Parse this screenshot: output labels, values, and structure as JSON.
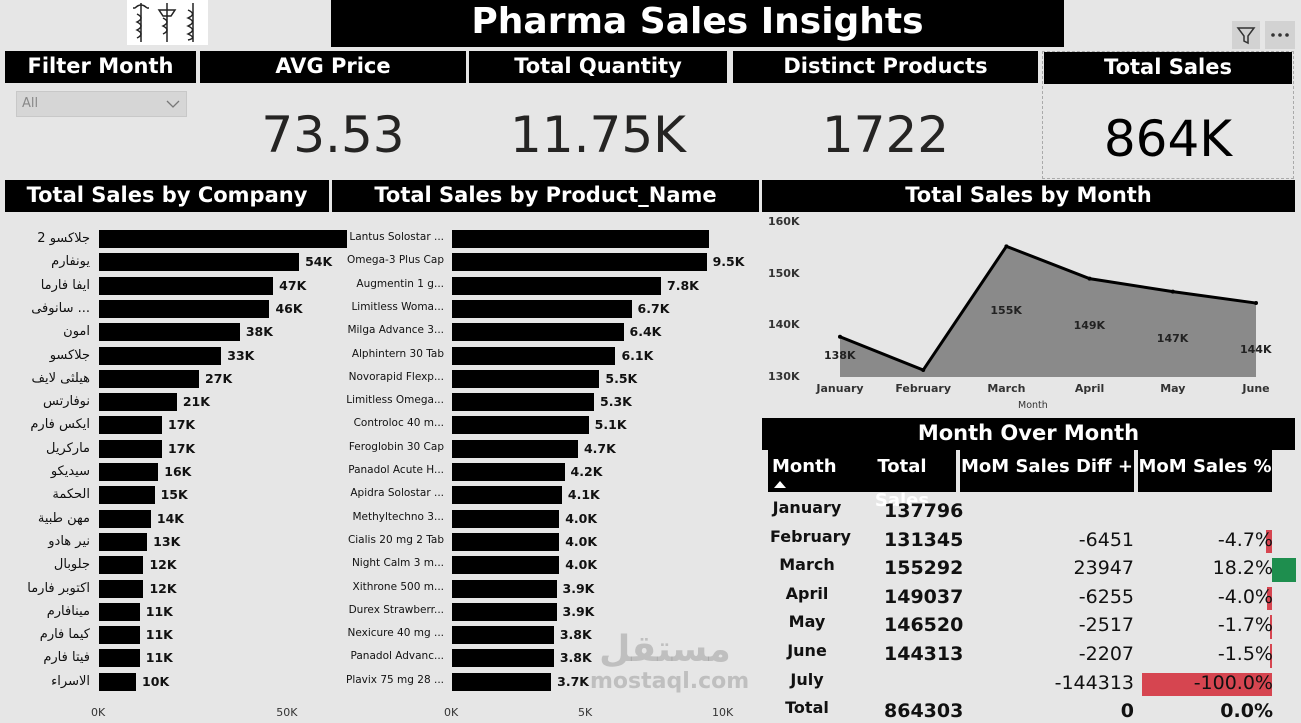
{
  "header": {
    "title": "Pharma Sales Insights"
  },
  "toolbar": {
    "filter_icon": "filter-icon",
    "more_icon": "more-options-icon"
  },
  "filter": {
    "label": "Filter Month",
    "value": "All",
    "icon": "chevron-down-icon"
  },
  "kpis": {
    "avg_price": {
      "label": "AVG Price",
      "value": "73.53"
    },
    "total_quantity": {
      "label": "Total Quantity",
      "value": "11.75K"
    },
    "distinct_products": {
      "label": "Distinct Products",
      "value": "1722"
    },
    "total_sales": {
      "label": "Total Sales",
      "value": "864K"
    }
  },
  "chart_data": [
    {
      "type": "bar",
      "orientation": "horizontal",
      "title": "Total Sales by Company",
      "categories": [
        "جلاكسو 2",
        "يونفارم",
        "ايفا فارما",
        "... سانوفى",
        "امون",
        "جلاكسو",
        "هيلثى لايف",
        "نوفارتس",
        "ايكس فارم",
        "ماركريل",
        "سيديكو",
        "الحكمة",
        "مهن طبية",
        "نير هادو",
        "جلوبال",
        "اكتوبر فارما",
        "مينافارم",
        "كيما فارم",
        "فيتا فارم",
        "الاسراء"
      ],
      "values": [
        67,
        54,
        47,
        46,
        38,
        33,
        27,
        21,
        17,
        17,
        16,
        15,
        14,
        13,
        12,
        12,
        11,
        11,
        11,
        10
      ],
      "labels": [
        "",
        "54K",
        "47K",
        "46K",
        "38K",
        "33K",
        "27K",
        "21K",
        "17K",
        "17K",
        "16K",
        "15K",
        "14K",
        "13K",
        "12K",
        "12K",
        "11K",
        "11K",
        "11K",
        "10K"
      ],
      "xticks": [
        "0K",
        "50K"
      ],
      "xlim": [
        0,
        85
      ]
    },
    {
      "type": "bar",
      "orientation": "horizontal",
      "title": "Total Sales by Product_Name",
      "categories": [
        "Lantus Solostar ...",
        "Omega-3 Plus Cap",
        "Augmentin 1 g...",
        "Limitless Woma...",
        "Milga Advance 3...",
        "Alphintern 30 Tab",
        "Novorapid Flexp...",
        "Limitless Omega...",
        "Controloc 40 m...",
        "Feroglobin 30 Cap",
        "Panadol Acute H...",
        "Apidra Solostar ...",
        "Methyltechno 3...",
        "Cialis 20 mg 2 Tab",
        "Night Calm 3 m...",
        "Xithrone 500 m...",
        "Durex Strawberr...",
        "Nexicure 40 mg ...",
        "Panadol Advanc...",
        "Plavix 75 mg 28 ..."
      ],
      "values": [
        9.6,
        9.5,
        7.8,
        6.7,
        6.4,
        6.1,
        5.5,
        5.3,
        5.1,
        4.7,
        4.2,
        4.1,
        4.0,
        4.0,
        4.0,
        3.9,
        3.9,
        3.8,
        3.8,
        3.7
      ],
      "labels": [
        "",
        "9.5K",
        "7.8K",
        "6.7K",
        "6.4K",
        "6.1K",
        "5.5K",
        "5.3K",
        "5.1K",
        "4.7K",
        "4.2K",
        "4.1K",
        "4.0K",
        "4.0K",
        "4.0K",
        "3.9K",
        "3.9K",
        "3.8K",
        "3.8K",
        "3.7K"
      ],
      "xticks": [
        "0K",
        "5K",
        "10K"
      ],
      "xlim": [
        0,
        10
      ]
    },
    {
      "type": "area",
      "title": "Total Sales by Month",
      "xlabel": "Month",
      "categories": [
        "January",
        "February",
        "March",
        "April",
        "May",
        "June"
      ],
      "values": [
        137796,
        131345,
        155292,
        149037,
        146520,
        144313
      ],
      "labels": [
        "138K",
        "",
        "155K",
        "149K",
        "147K",
        "144K"
      ],
      "yticks": [
        "160K",
        "150K",
        "140K",
        "130K"
      ],
      "ylim": [
        130000,
        160000
      ]
    },
    {
      "type": "table",
      "title": "Month Over Month",
      "columns": [
        "Month",
        "Total Sales",
        "MoM Sales Diff +",
        "MoM Sales %"
      ],
      "rows": [
        [
          "January",
          "137796",
          "",
          ""
        ],
        [
          "February",
          "131345",
          "-6451",
          "-4.7%"
        ],
        [
          "March",
          "155292",
          "23947",
          "18.2%"
        ],
        [
          "April",
          "149037",
          "-6255",
          "-4.0%"
        ],
        [
          "May",
          "146520",
          "-2517",
          "-1.7%"
        ],
        [
          "June",
          "144313",
          "-2207",
          "-1.5%"
        ],
        [
          "July",
          "",
          "-144313",
          "-100.0%"
        ]
      ],
      "pct_values": [
        null,
        -4.7,
        18.2,
        -4.0,
        -1.7,
        -1.5,
        -100.0
      ],
      "total": [
        "Total",
        "864303",
        "0",
        "0.0%"
      ],
      "sort_indicator": "sort-asc-icon",
      "colors": {
        "positive": "#1e8e4e",
        "negative": "#d64550"
      }
    }
  ],
  "watermark": {
    "text1": "مستقل",
    "text2": "mostaql.com"
  }
}
